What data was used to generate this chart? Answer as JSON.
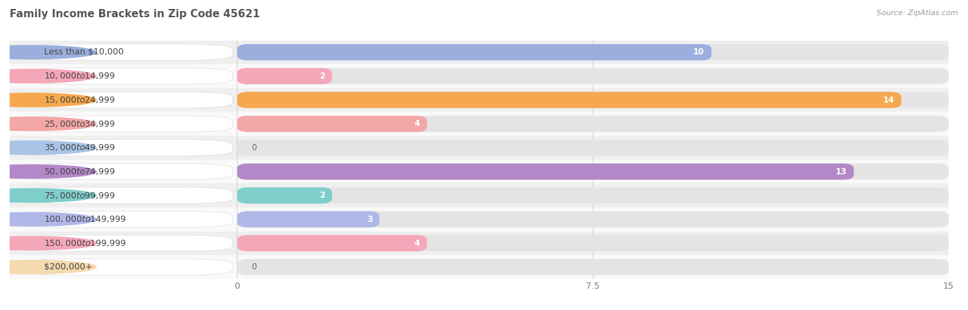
{
  "title": "Family Income Brackets in Zip Code 45621",
  "source": "Source: ZipAtlas.com",
  "categories": [
    "Less than $10,000",
    "$10,000 to $14,999",
    "$15,000 to $24,999",
    "$25,000 to $34,999",
    "$35,000 to $49,999",
    "$50,000 to $74,999",
    "$75,000 to $99,999",
    "$100,000 to $149,999",
    "$150,000 to $199,999",
    "$200,000+"
  ],
  "values": [
    10,
    2,
    14,
    4,
    0,
    13,
    2,
    3,
    4,
    0
  ],
  "bar_colors": [
    "#9baede",
    "#f4a7b9",
    "#f5a84e",
    "#f4a7a7",
    "#aac4e8",
    "#b388c8",
    "#7ececa",
    "#b0b8e8",
    "#f4a7b9",
    "#f5d9b0"
  ],
  "xlim": [
    0,
    15
  ],
  "xticks": [
    0,
    7.5,
    15
  ],
  "bar_height": 0.68,
  "row_colors": [
    "#efefef",
    "#f9f9f9"
  ],
  "bar_bg_color": "#e4e4e4",
  "title_fontsize": 11,
  "label_fontsize": 9,
  "value_fontsize": 8.5,
  "figsize": [
    14.06,
    4.5
  ],
  "dpi": 100
}
